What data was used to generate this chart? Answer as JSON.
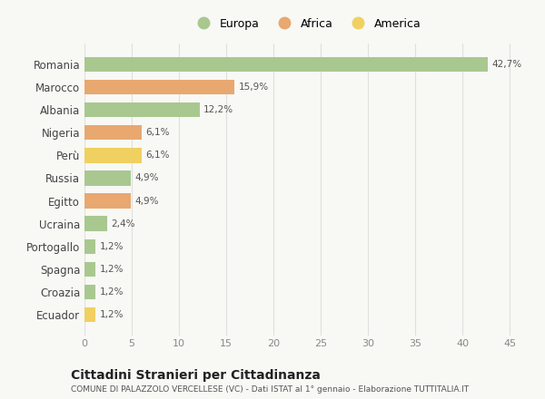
{
  "categories": [
    "Romania",
    "Marocco",
    "Albania",
    "Nigeria",
    "Perù",
    "Russia",
    "Egitto",
    "Ucraina",
    "Portogallo",
    "Spagna",
    "Croazia",
    "Ecuador"
  ],
  "values": [
    42.7,
    15.9,
    12.2,
    6.1,
    6.1,
    4.9,
    4.9,
    2.4,
    1.2,
    1.2,
    1.2,
    1.2
  ],
  "labels": [
    "42,7%",
    "15,9%",
    "12,2%",
    "6,1%",
    "6,1%",
    "4,9%",
    "4,9%",
    "2,4%",
    "1,2%",
    "1,2%",
    "1,2%",
    "1,2%"
  ],
  "colors": [
    "#a8c890",
    "#e8a870",
    "#a8c890",
    "#e8a870",
    "#f0d060",
    "#a8c890",
    "#e8a870",
    "#a8c890",
    "#a8c890",
    "#a8c890",
    "#a8c890",
    "#f0d060"
  ],
  "legend_labels": [
    "Europa",
    "Africa",
    "America"
  ],
  "legend_colors": [
    "#a8c890",
    "#e8a870",
    "#f0d060"
  ],
  "title": "Cittadini Stranieri per Cittadinanza",
  "subtitle": "COMUNE DI PALAZZOLO VERCELLESE (VC) - Dati ISTAT al 1° gennaio - Elaborazione TUTTITALIA.IT",
  "xlim": [
    0,
    47
  ],
  "xticks": [
    0,
    5,
    10,
    15,
    20,
    25,
    30,
    35,
    40,
    45
  ],
  "background_color": "#f8f8f5",
  "grid_color": "#e0e0e0",
  "label_color": "#555555",
  "tick_color": "#888888",
  "bar_height": 0.65
}
